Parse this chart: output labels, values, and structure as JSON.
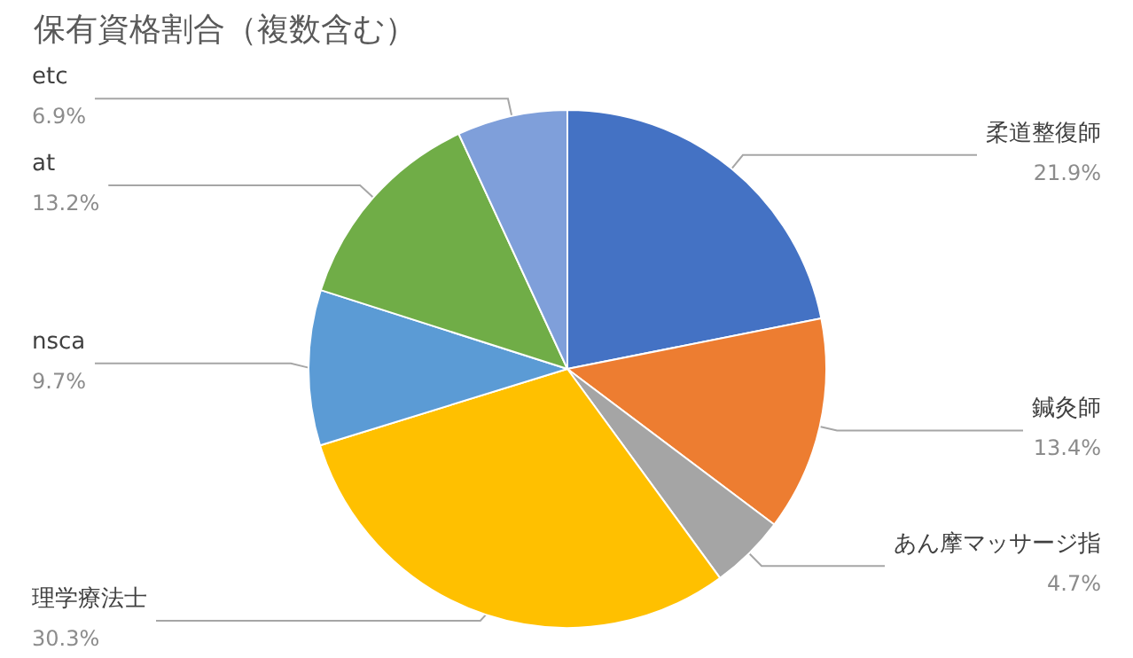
{
  "chart_data": {
    "type": "pie",
    "title": "保有資格割合（複数含む）",
    "categories": [
      "柔道整復師",
      "鍼灸師",
      "あん摩マッサージ指",
      "理学療法士",
      "nsca",
      "at",
      "etc"
    ],
    "values": [
      21.9,
      13.4,
      4.7,
      30.3,
      9.7,
      13.2,
      6.9
    ],
    "value_labels": [
      "21.9%",
      "13.4%",
      "4.7%",
      "30.3%",
      "9.7%",
      "13.2%",
      "6.9%"
    ],
    "colors": [
      "#4472c4",
      "#ed7d31",
      "#a5a5a5",
      "#ffc000",
      "#5b9bd5",
      "#70ad47",
      "#7f9fda"
    ],
    "legend": false
  }
}
